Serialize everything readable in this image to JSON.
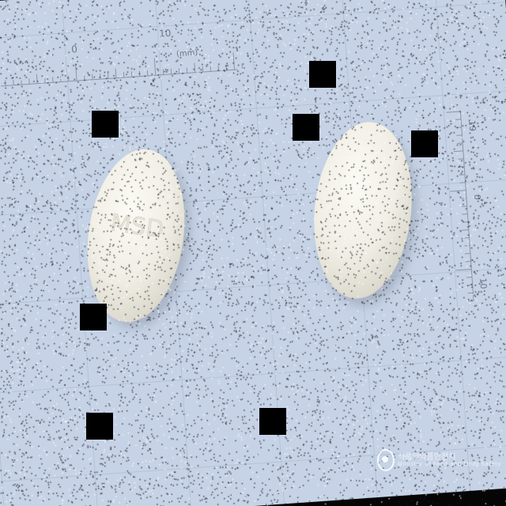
{
  "scene": {
    "background_color": "#c6d3e6",
    "grid_color": "#b3c2d8",
    "pill_color": "#f1efe6"
  },
  "ruler_top": {
    "label_zero": "0",
    "label_ten": "10",
    "unit": "(mm)"
  },
  "ruler_right": {
    "label_top": "10",
    "label_mid": "0",
    "label_bottom": "10"
  },
  "pill_left": {
    "imprint": "MSD"
  },
  "watermark": {
    "icon": "logo-icon",
    "line1": "식품의약품안전처",
    "line2": "Ministry of Food and Drug Safety"
  }
}
